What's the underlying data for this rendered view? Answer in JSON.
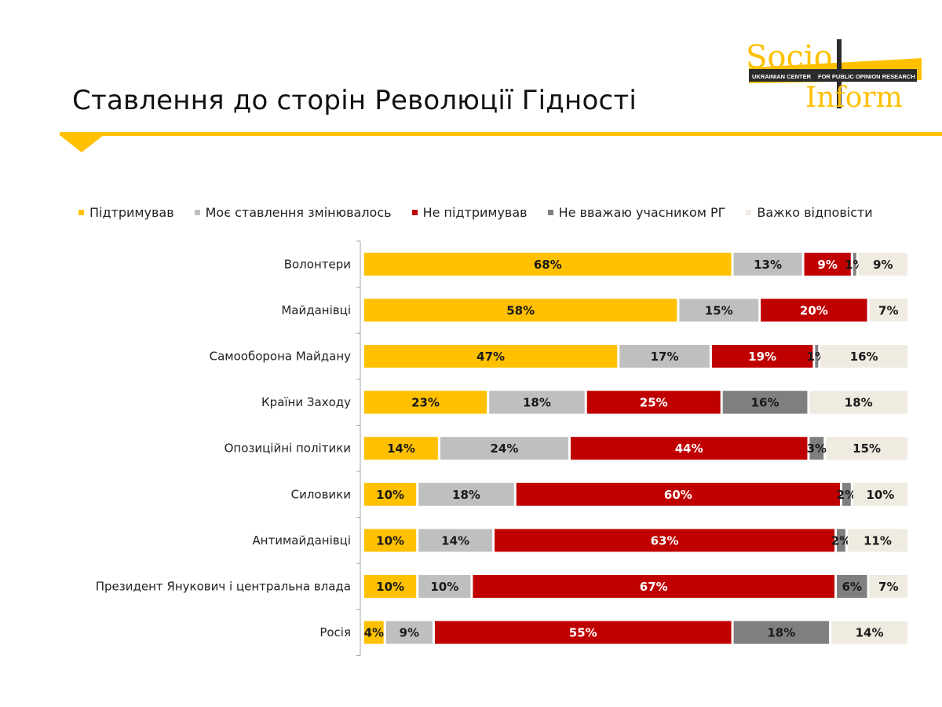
{
  "header": {
    "title": "Ставлення до сторін Революції Гідності",
    "accent_color": "#ffc000"
  },
  "logo": {
    "line1": "Socio",
    "line2": "Inform",
    "band_left": "UKRAINIAN CENTER",
    "band_right": "FOR PUBLIC OPINION RESEARCH"
  },
  "chart_data": {
    "type": "bar",
    "orientation": "horizontal",
    "stacked": true,
    "percent": true,
    "legend": "top",
    "grid": false,
    "xlim": [
      0,
      100
    ],
    "categories": [
      "Волонтери",
      "Майданівці",
      "Самооборона Майдану",
      "Країни Заходу",
      "Опозиційні політики",
      "Силовики",
      "Антимайданівці",
      "Президент Янукович і центральна влада",
      "Росія"
    ],
    "series": [
      {
        "name": "Підтримував",
        "color": "#ffc000",
        "label_color": "#1a1a1a",
        "values": [
          68,
          58,
          47,
          23,
          14,
          10,
          10,
          10,
          4
        ]
      },
      {
        "name": "Моє ставлення змінювалось",
        "color": "#bfbfbf",
        "label_color": "#1a1a1a",
        "values": [
          13,
          15,
          17,
          18,
          24,
          18,
          14,
          10,
          9
        ]
      },
      {
        "name": "Не підтримував",
        "color": "#c00000",
        "label_color": "#ffffff",
        "values": [
          9,
          20,
          19,
          25,
          44,
          60,
          63,
          67,
          55
        ]
      },
      {
        "name": "Не вважаю учасником РГ",
        "color": "#7f7f7f",
        "label_color": "#1a1a1a",
        "values": [
          1,
          0,
          1,
          16,
          3,
          2,
          2,
          6,
          18
        ]
      },
      {
        "name": "Важко відповісти",
        "color": "#efebe1",
        "label_color": "#1a1a1a",
        "values": [
          9,
          7,
          16,
          18,
          15,
          10,
          11,
          7,
          14
        ]
      }
    ]
  }
}
